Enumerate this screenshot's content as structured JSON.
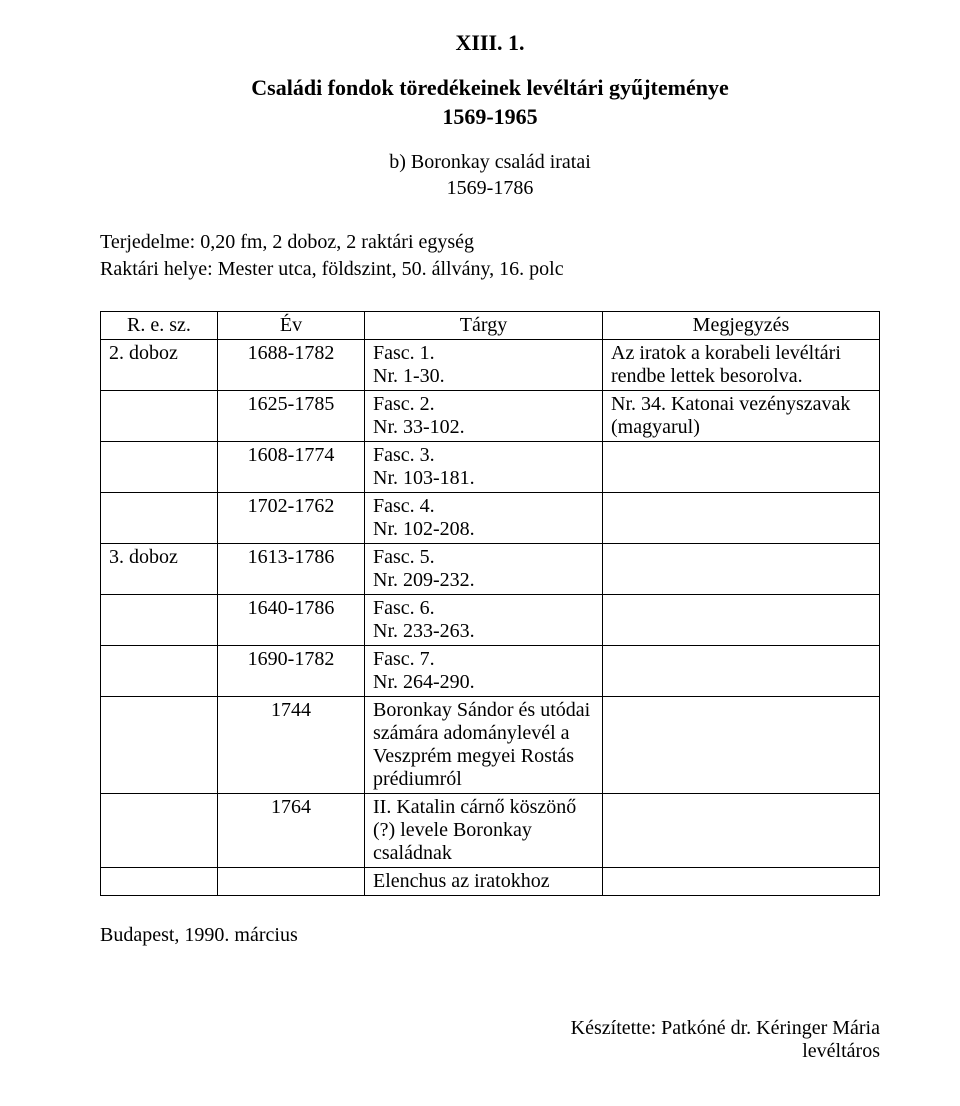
{
  "doc_number": "XIII. 1.",
  "title_line1": "Családi fondok töredékeinek levéltári gyűjteménye",
  "title_line2": "1569-1965",
  "subtitle_line1": "b) Boronkay család iratai",
  "subtitle_line2": "1569-1786",
  "meta_line1": "Terjedelme: 0,20 fm, 2 doboz, 2 raktári egység",
  "meta_line2": "Raktári helye: Mester utca, földszint, 50. állvány, 16. polc",
  "table": {
    "headers": {
      "resz": "R. e. sz.",
      "ev": "Év",
      "targy": "Tárgy",
      "megj": "Megjegyzés"
    },
    "rows": [
      {
        "resz": "2. doboz",
        "ev": "1688-1782",
        "targy": "Fasc. 1.\nNr. 1-30.",
        "megj": "Az iratok a korabeli levéltári rendbe lettek besorolva."
      },
      {
        "resz": "",
        "ev": "1625-1785",
        "targy": "Fasc. 2.\nNr. 33-102.",
        "megj": "Nr. 34. Katonai vezényszavak (magyarul)"
      },
      {
        "resz": "",
        "ev": "1608-1774",
        "targy": "Fasc. 3.\nNr. 103-181.",
        "megj": ""
      },
      {
        "resz": "",
        "ev": "1702-1762",
        "targy": "Fasc. 4.\nNr. 102-208.",
        "megj": ""
      },
      {
        "resz": "3. doboz",
        "ev": "1613-1786",
        "targy": "Fasc. 5.\nNr. 209-232.",
        "megj": ""
      },
      {
        "resz": "",
        "ev": "1640-1786",
        "targy": "Fasc. 6.\nNr. 233-263.",
        "megj": ""
      },
      {
        "resz": "",
        "ev": "1690-1782",
        "targy": "Fasc. 7.\nNr. 264-290.",
        "megj": ""
      },
      {
        "resz": "",
        "ev": "1744",
        "targy": "Boronkay Sándor és utódai számára adománylevél a Veszprém megyei Rostás prédiumról",
        "megj": ""
      },
      {
        "resz": "",
        "ev": "1764",
        "targy": "II. Katalin cárnő köszönő (?) levele Boronkay családnak",
        "megj": ""
      },
      {
        "resz": "",
        "ev": "",
        "targy": "Elenchus az iratokhoz",
        "megj": ""
      }
    ]
  },
  "footer_left": "Budapest, 1990. március",
  "footer_right_line1": "Készítette: Patkóné dr. Kéringer Mária",
  "footer_right_line2": "levéltáros"
}
